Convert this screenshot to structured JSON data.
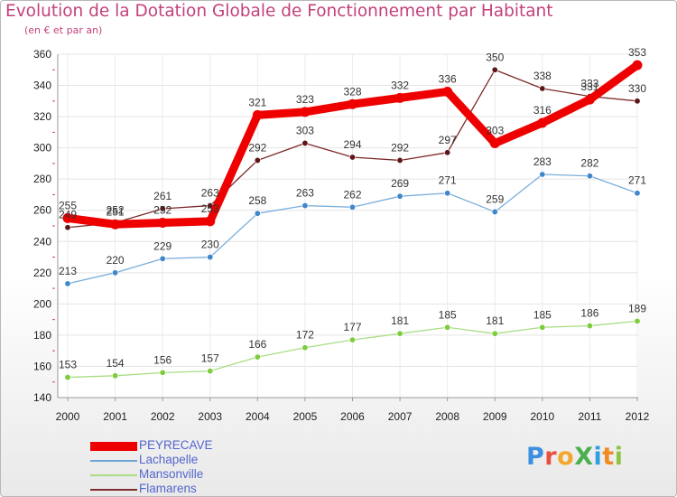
{
  "header": {
    "title": "Evolution de la Dotation Globale de Fonctionnement par Habitant",
    "subtitle": "(en € et par an)"
  },
  "brand": {
    "text": "ProXiti",
    "letter_colors": [
      "#3b8fe0",
      "#e94f3d",
      "#f3a72b",
      "#4caf50",
      "#2f9fe0",
      "#f08a24",
      "#8cc63f"
    ]
  },
  "chart_data": {
    "type": "line",
    "title": "Evolution de la Dotation Globale de Fonctionnement par Habitant",
    "subtitle": "(en € et par an)",
    "xlabel": "",
    "ylabel": "",
    "x": [
      "2000",
      "2001",
      "2002",
      "2003",
      "2004",
      "2005",
      "2006",
      "2007",
      "2008",
      "2009",
      "2010",
      "2011",
      "2012"
    ],
    "ylim": [
      140,
      360
    ],
    "yticks": [
      140,
      160,
      180,
      200,
      220,
      240,
      260,
      280,
      300,
      320,
      340,
      360
    ],
    "grid": true,
    "legend_position": "bottom-left",
    "series": [
      {
        "name": "PEYRECAVE",
        "color": "#ee0000",
        "line_color": "#ee0000",
        "marker_color": "#ee0000",
        "weight": "thick",
        "values": [
          255,
          251,
          252,
          253,
          321,
          323,
          328,
          332,
          336,
          303,
          316,
          331,
          353
        ]
      },
      {
        "name": "Lachapelle",
        "color": "#6fa6d8",
        "line_color": "#7aaedb",
        "marker_color": "#3f86cc",
        "weight": "thin",
        "values": [
          213,
          220,
          229,
          230,
          258,
          263,
          262,
          269,
          271,
          259,
          283,
          282,
          271
        ]
      },
      {
        "name": "Mansonville",
        "color": "#a9dd84",
        "line_color": "#a9dd84",
        "marker_color": "#7ccd3b",
        "weight": "thin",
        "values": [
          153,
          154,
          156,
          157,
          166,
          172,
          177,
          181,
          185,
          181,
          185,
          186,
          189
        ]
      },
      {
        "name": "Flamarens",
        "color": "#7d2b2b",
        "line_color": "#7d2b2b",
        "marker_color": "#5c1518",
        "weight": "thin",
        "values": [
          249,
          252,
          261,
          263,
          292,
          303,
          294,
          292,
          297,
          350,
          338,
          333,
          330
        ]
      }
    ]
  }
}
